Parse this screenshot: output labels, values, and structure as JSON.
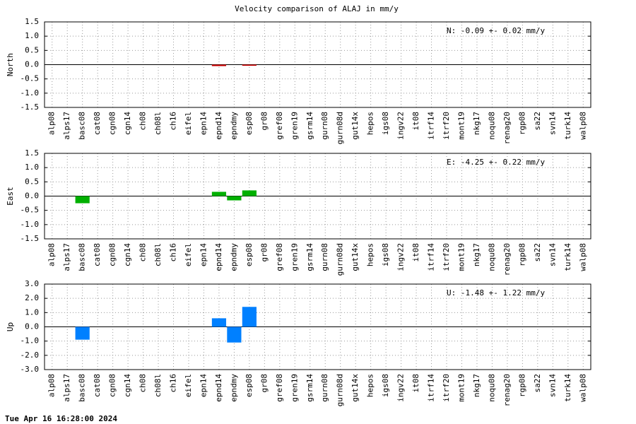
{
  "title": "Velocity comparison of ALAJ in mm/y",
  "timestamp": "Tue Apr 16 16:28:00 2024",
  "chart_data": [
    {
      "type": "bar",
      "ylabel": "North",
      "annotation": "N:  -0.09 +-  0.02 mm/y",
      "color": "#cc0000",
      "grid": true,
      "categories": [
        "alp08",
        "alps17",
        "basc08",
        "cat08",
        "cgn08",
        "cgn14",
        "ch08",
        "ch08l",
        "ch16",
        "eifel",
        "epn14",
        "epnd14",
        "epndmy",
        "esp08",
        "gr08",
        "gref08",
        "gren19",
        "gsrm14",
        "gurn08",
        "gurn08d",
        "gut14x",
        "hepos",
        "igs08",
        "ingv22",
        "it08",
        "itrf14",
        "itrf20",
        "mont19",
        "nkg17",
        "noqu08",
        "renag20",
        "rgp08",
        "sa22",
        "svn14",
        "turk14",
        "walp08"
      ],
      "values": [
        null,
        null,
        null,
        null,
        null,
        null,
        null,
        null,
        null,
        null,
        null,
        -0.05,
        null,
        -0.02,
        null,
        null,
        null,
        null,
        null,
        null,
        null,
        null,
        null,
        null,
        null,
        null,
        null,
        null,
        null,
        null,
        null,
        null,
        null,
        null,
        null,
        null
      ],
      "ylim": [
        -1.5,
        1.5
      ],
      "yticks": [
        1.5,
        {
          "value": 1,
          "label": "1.0"
        },
        0.5,
        {
          "value": 0,
          "label": "0.0"
        },
        -0.5,
        {
          "value": -1,
          "label": "-1.0"
        },
        -1.5
      ]
    },
    {
      "type": "bar",
      "ylabel": "East",
      "annotation": "E:  -4.25 +-  0.22 mm/y",
      "color": "#00b000",
      "grid": true,
      "categories": [
        "alp08",
        "alps17",
        "basc08",
        "cat08",
        "cgn08",
        "cgn14",
        "ch08",
        "ch08l",
        "ch16",
        "eifel",
        "epn14",
        "epnd14",
        "epndmy",
        "esp08",
        "gr08",
        "gref08",
        "gren19",
        "gsrm14",
        "gurn08",
        "gurn08d",
        "gut14x",
        "hepos",
        "igs08",
        "ingv22",
        "it08",
        "itrf14",
        "itrf20",
        "mont19",
        "nkg17",
        "noqu08",
        "renag20",
        "rgp08",
        "sa22",
        "svn14",
        "turk14",
        "walp08"
      ],
      "values": [
        null,
        null,
        -0.25,
        null,
        null,
        null,
        null,
        null,
        null,
        null,
        null,
        0.15,
        -0.15,
        0.2,
        null,
        null,
        null,
        null,
        null,
        null,
        null,
        null,
        null,
        null,
        null,
        null,
        null,
        null,
        null,
        null,
        null,
        null,
        null,
        null,
        null,
        null
      ],
      "ylim": [
        -1.5,
        1.5
      ],
      "yticks": [
        1.5,
        {
          "value": 1,
          "label": "1.0"
        },
        0.5,
        {
          "value": 0,
          "label": "0.0"
        },
        -0.5,
        {
          "value": -1,
          "label": "-1.0"
        },
        -1.5
      ]
    },
    {
      "type": "bar",
      "ylabel": "Up",
      "annotation": "U:  -1.48 +-  1.22 mm/y",
      "color": "#0080ff",
      "grid": true,
      "categories": [
        "alp08",
        "alps17",
        "basc08",
        "cat08",
        "cgn08",
        "cgn14",
        "ch08",
        "ch08l",
        "ch16",
        "eifel",
        "epn14",
        "epnd14",
        "epndmy",
        "esp08",
        "gr08",
        "gref08",
        "gren19",
        "gsrm14",
        "gurn08",
        "gurn08d",
        "gut14x",
        "hepos",
        "igs08",
        "ingv22",
        "it08",
        "itrf14",
        "itrf20",
        "mont19",
        "nkg17",
        "noqu08",
        "renag20",
        "rgp08",
        "sa22",
        "svn14",
        "turk14",
        "walp08"
      ],
      "values": [
        null,
        null,
        -0.9,
        null,
        null,
        null,
        null,
        null,
        null,
        null,
        null,
        0.6,
        -1.1,
        1.4,
        null,
        null,
        null,
        null,
        null,
        null,
        null,
        null,
        null,
        null,
        null,
        null,
        null,
        null,
        null,
        null,
        null,
        null,
        null,
        null,
        null,
        null
      ],
      "ylim": [
        -3,
        3
      ],
      "yticks": [
        {
          "value": 3,
          "label": "3.0"
        },
        {
          "value": 2,
          "label": "2.0"
        },
        {
          "value": 1,
          "label": "1.0"
        },
        {
          "value": 0,
          "label": "0.0"
        },
        {
          "value": -1,
          "label": "-1.0"
        },
        {
          "value": -2,
          "label": "-2.0"
        },
        {
          "value": -3,
          "label": "-3.0"
        }
      ]
    }
  ]
}
